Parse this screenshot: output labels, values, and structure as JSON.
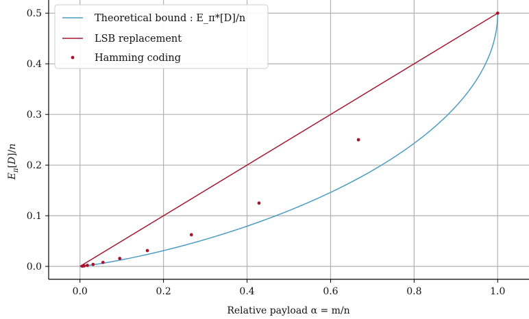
{
  "chart_data": {
    "type": "line",
    "title": "",
    "xlabel": "Relative payload α = m/n",
    "ylabel": "E_π[D]/n",
    "xlim": [
      -0.075,
      1.075
    ],
    "ylim": [
      -0.0255,
      0.526
    ],
    "xticks": [
      0.0,
      0.2,
      0.4,
      0.6,
      0.8,
      1.0
    ],
    "xtick_labels": [
      "0.0",
      "0.2",
      "0.4",
      "0.6",
      "0.8",
      "1.0"
    ],
    "yticks": [
      0.0,
      0.1,
      0.2,
      0.3,
      0.4,
      0.5
    ],
    "ytick_labels": [
      "0.0",
      "0.1",
      "0.2",
      "0.3",
      "0.4",
      "0.5"
    ],
    "grid": true,
    "legend_position": "top-left",
    "series": [
      {
        "name": "Theoretical bound : E_π*[D]/n",
        "kind": "line",
        "color": "#4b9bc4",
        "function": "inverse-binary-entropy"
      },
      {
        "name": "LSB replacement",
        "kind": "line",
        "color": "#a3172e",
        "x": [
          0.0,
          1.0
        ],
        "y": [
          0.0,
          0.5
        ]
      },
      {
        "name": "Hamming coding",
        "kind": "scatter",
        "color": "#a3172e",
        "x": [
          1.0,
          0.6667,
          0.4286,
          0.2667,
          0.1613,
          0.0952,
          0.0551,
          0.0314,
          0.0176,
          0.0098,
          0.0054
        ],
        "y": [
          0.5,
          0.25,
          0.125,
          0.0625,
          0.03125,
          0.015625,
          0.0078125,
          0.00390625,
          0.001953125,
          0.0009765625,
          0.00048828125
        ]
      }
    ]
  }
}
